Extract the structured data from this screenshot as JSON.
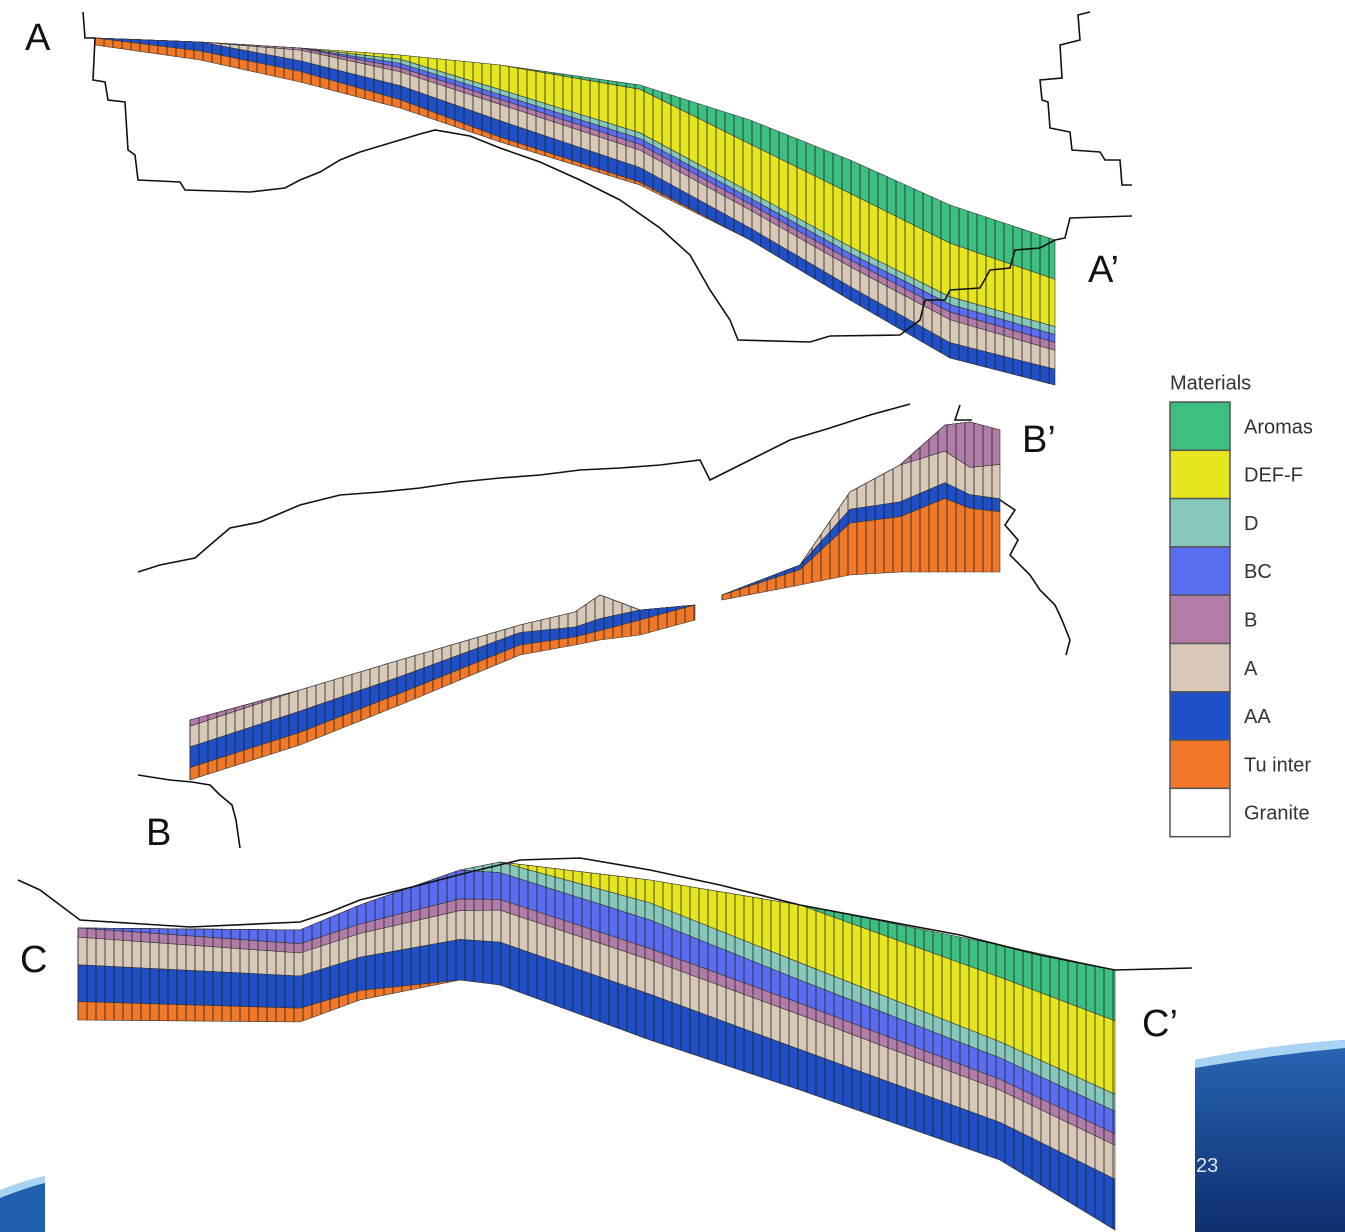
{
  "sections": {
    "labels": [
      "A",
      "A’",
      "B",
      "B’",
      "C",
      "C’"
    ]
  },
  "legend": {
    "title": "Materials",
    "items": [
      {
        "label": "Aromas",
        "color": "#3dbf82"
      },
      {
        "label": "DEF-F",
        "color": "#e6e61e"
      },
      {
        "label": "D",
        "color": "#86c8bc"
      },
      {
        "label": "BC",
        "color": "#5a6cf0"
      },
      {
        "label": "B",
        "color": "#b27ca8"
      },
      {
        "label": "A",
        "color": "#d8c8b8"
      },
      {
        "label": "AA",
        "color": "#1f4fc6"
      },
      {
        "label": "Tu inter",
        "color": "#f07828"
      },
      {
        "label": "Granite",
        "color": "#ffffff"
      }
    ]
  },
  "slide_number": "23"
}
